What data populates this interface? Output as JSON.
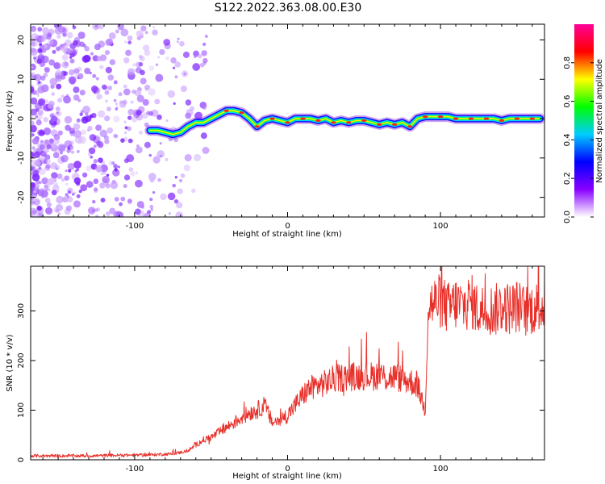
{
  "title": "S122.2022.363.08.00.E30",
  "chart_data": [
    {
      "type": "heatmap",
      "xlabel": "Height of straight line (km)",
      "ylabel": "Frequency (Hz)",
      "xlim": [
        -168,
        168
      ],
      "ylim": [
        -25,
        24
      ],
      "x_ticks": [
        -100,
        0,
        100
      ],
      "y_ticks": [
        -20,
        -10,
        0,
        10,
        20
      ],
      "colorbar": {
        "label": "Normalized spectral amplitude",
        "range": [
          0.0,
          1.0
        ],
        "ticks": [
          0.0,
          0.2,
          0.4,
          0.6,
          0.8
        ],
        "tick_labels": [
          "0.0",
          "0.2",
          "0.4",
          "0.6",
          "0.8"
        ],
        "colors": [
          "#ffffff",
          "#8800ff",
          "#0000ff",
          "#00ccff",
          "#00ff00",
          "#ffff00",
          "#ff0000",
          "#ff0099"
        ]
      },
      "ridge": {
        "x": [
          -90,
          -85,
          -80,
          -75,
          -70,
          -65,
          -60,
          -55,
          -50,
          -45,
          -40,
          -35,
          -30,
          -25,
          -20,
          -15,
          -10,
          -5,
          0,
          5,
          10,
          15,
          20,
          25,
          30,
          35,
          40,
          45,
          50,
          55,
          60,
          65,
          70,
          75,
          80,
          85,
          90,
          95,
          100,
          105,
          110,
          115,
          120,
          125,
          130,
          135,
          140,
          145,
          150,
          155,
          160,
          165
        ],
        "y": [
          -3,
          -3,
          -3.5,
          -4,
          -3.5,
          -2,
          -1,
          -1,
          0,
          1,
          2,
          2,
          1.5,
          0,
          -2,
          -0.5,
          0,
          -0.5,
          -1,
          0,
          0,
          0,
          -0.5,
          0,
          -1,
          -0.5,
          -1,
          -0.5,
          -0.5,
          -1,
          -1.5,
          -1,
          -1.5,
          -1,
          -2,
          0,
          0.5,
          0.5,
          0.5,
          0.5,
          0,
          0,
          0,
          0,
          0,
          0,
          -0.5,
          0,
          0,
          0,
          0,
          0
        ]
      }
    },
    {
      "type": "line",
      "xlabel": "Height of straight line (km)",
      "ylabel": "SNR (10 * v/v)",
      "xlim": [
        -168,
        168
      ],
      "ylim": [
        0,
        390
      ],
      "x_ticks": [
        -100,
        0,
        100
      ],
      "y_ticks": [
        0,
        100,
        200,
        300
      ],
      "series": [
        {
          "color": "#e8302a",
          "x": [
            -168,
            -150,
            -130,
            -110,
            -90,
            -75,
            -65,
            -60,
            -55,
            -50,
            -45,
            -40,
            -35,
            -30,
            -25,
            -20,
            -15,
            -10,
            -5,
            0,
            5,
            10,
            15,
            20,
            25,
            30,
            35,
            40,
            45,
            50,
            55,
            60,
            65,
            70,
            75,
            80,
            85,
            88,
            90,
            92,
            95,
            100,
            105,
            110,
            115,
            120,
            125,
            130,
            135,
            140,
            145,
            150,
            155,
            160,
            165,
            168
          ],
          "y": [
            8,
            8,
            8,
            9,
            10,
            12,
            18,
            30,
            40,
            45,
            55,
            65,
            75,
            85,
            95,
            100,
            110,
            75,
            80,
            90,
            110,
            130,
            145,
            150,
            155,
            162,
            165,
            167,
            168,
            170,
            168,
            172,
            165,
            168,
            162,
            158,
            150,
            120,
            100,
            310,
            315,
            320,
            305,
            315,
            310,
            320,
            300,
            305,
            300,
            310,
            305,
            310,
            300,
            305,
            308,
            310
          ]
        }
      ]
    }
  ]
}
